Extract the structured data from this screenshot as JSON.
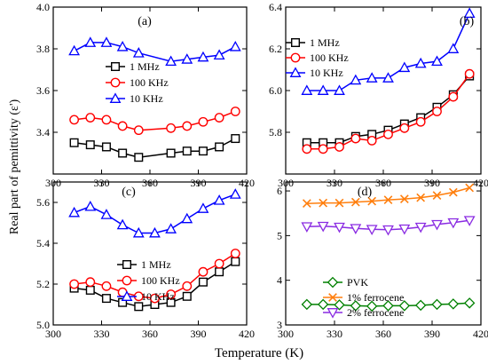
{
  "figure": {
    "ylabel": "Real part of pemittivity (ε')",
    "xlabel": "Temperature (K)"
  },
  "chart_data": [
    {
      "type": "line",
      "panel": "(a)",
      "x": [
        313,
        323,
        333,
        343,
        353,
        373,
        383,
        393,
        403,
        413
      ],
      "xlim": [
        300,
        420
      ],
      "ylim": [
        3.2,
        4.0
      ],
      "xticks": [
        300,
        330,
        360,
        390,
        420
      ],
      "yticks": [
        3.4,
        3.6,
        3.8,
        4.0
      ],
      "legend_position": "center-left",
      "series": [
        {
          "name": "1 MHz",
          "color": "#000000",
          "marker": "square",
          "values": [
            3.35,
            3.34,
            3.33,
            3.3,
            3.28,
            3.3,
            3.31,
            3.31,
            3.33,
            3.37
          ]
        },
        {
          "name": "100 KHz",
          "color": "#ff0000",
          "marker": "circle",
          "values": [
            3.46,
            3.47,
            3.46,
            3.43,
            3.41,
            3.42,
            3.43,
            3.45,
            3.47,
            3.5
          ]
        },
        {
          "name": "10 KHz",
          "color": "#0000ff",
          "marker": "triangle",
          "values": [
            3.79,
            3.83,
            3.83,
            3.81,
            3.78,
            3.74,
            3.75,
            3.76,
            3.77,
            3.81
          ]
        }
      ]
    },
    {
      "type": "line",
      "panel": "(b)",
      "x": [
        313,
        323,
        333,
        343,
        353,
        363,
        373,
        383,
        393,
        403,
        413
      ],
      "xlim": [
        300,
        420
      ],
      "ylim": [
        5.6,
        6.4
      ],
      "xticks": [
        300,
        330,
        360,
        390,
        420
      ],
      "yticks": [
        5.8,
        6.0,
        6.2,
        6.4
      ],
      "legend_position": "top-left",
      "series": [
        {
          "name": "1 MHz",
          "color": "#000000",
          "marker": "square",
          "values": [
            5.75,
            5.75,
            5.75,
            5.78,
            5.79,
            5.81,
            5.84,
            5.87,
            5.92,
            5.98,
            6.07
          ]
        },
        {
          "name": "100 KHz",
          "color": "#ff0000",
          "marker": "circle",
          "values": [
            5.72,
            5.72,
            5.73,
            5.77,
            5.76,
            5.79,
            5.82,
            5.85,
            5.9,
            5.97,
            6.08
          ]
        },
        {
          "name": "10 KHz",
          "color": "#0000ff",
          "marker": "triangle",
          "values": [
            6.0,
            6.0,
            6.0,
            6.05,
            6.06,
            6.06,
            6.11,
            6.13,
            6.14,
            6.2,
            6.37
          ]
        }
      ]
    },
    {
      "type": "line",
      "panel": "(c)",
      "x": [
        313,
        323,
        333,
        343,
        353,
        363,
        373,
        383,
        393,
        403,
        413
      ],
      "xlim": [
        300,
        420
      ],
      "ylim": [
        5.0,
        5.7
      ],
      "xticks": [
        300,
        330,
        360,
        390,
        420
      ],
      "yticks": [
        5.0,
        5.2,
        5.4,
        5.6
      ],
      "legend_position": "center-right",
      "series": [
        {
          "name": "1 MHz",
          "color": "#000000",
          "marker": "square",
          "values": [
            5.18,
            5.17,
            5.13,
            5.11,
            5.09,
            5.1,
            5.11,
            5.14,
            5.21,
            5.26,
            5.31
          ]
        },
        {
          "name": "100 KHz",
          "color": "#ff0000",
          "marker": "circle",
          "values": [
            5.2,
            5.21,
            5.19,
            5.16,
            5.14,
            5.13,
            5.15,
            5.19,
            5.26,
            5.3,
            5.35
          ]
        },
        {
          "name": "10 KHz",
          "color": "#0000ff",
          "marker": "triangle",
          "values": [
            5.55,
            5.58,
            5.54,
            5.49,
            5.45,
            5.45,
            5.47,
            5.52,
            5.57,
            5.61,
            5.64
          ]
        }
      ]
    },
    {
      "type": "line",
      "panel": "(d)",
      "x": [
        313,
        323,
        333,
        343,
        353,
        363,
        373,
        383,
        393,
        403,
        413
      ],
      "xlim": [
        300,
        420
      ],
      "ylim": [
        3,
        6.2
      ],
      "xticks": [
        300,
        330,
        360,
        390,
        420
      ],
      "yticks": [
        3,
        4,
        5,
        6
      ],
      "legend_position": "center",
      "series": [
        {
          "name": "PVK",
          "color": "#008000",
          "marker": "diamond",
          "values": [
            3.46,
            3.46,
            3.45,
            3.43,
            3.42,
            3.43,
            3.43,
            3.44,
            3.46,
            3.47,
            3.49
          ]
        },
        {
          "name": "1% ferrocene",
          "color": "#ff7f0e",
          "marker": "x",
          "values": [
            5.72,
            5.73,
            5.73,
            5.75,
            5.77,
            5.8,
            5.82,
            5.85,
            5.9,
            5.97,
            6.07
          ]
        },
        {
          "name": "2% ferrocene",
          "color": "#8a2be2",
          "marker": "triangle-down",
          "values": [
            5.2,
            5.21,
            5.19,
            5.16,
            5.14,
            5.13,
            5.15,
            5.19,
            5.25,
            5.29,
            5.34
          ]
        }
      ]
    }
  ]
}
